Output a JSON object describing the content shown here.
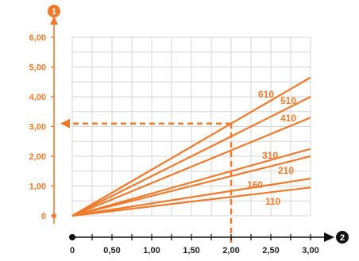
{
  "chart_data": {
    "type": "line",
    "title": "",
    "xlabel": "",
    "ylabel": "",
    "y_axis_marker": "1",
    "x_axis_marker": "2",
    "x_ticks": [
      "0",
      "0,50",
      "1,00",
      "1,50",
      "2,00",
      "2,50",
      "3,00"
    ],
    "y_ticks": [
      "0",
      "1,00",
      "2,00",
      "3,00",
      "4,00",
      "5,00",
      "6,00"
    ],
    "xlim": [
      0,
      3.0
    ],
    "ylim": [
      0,
      6.0
    ],
    "grid": true,
    "series": [
      {
        "name": "610",
        "x": [
          0,
          3.0
        ],
        "y": [
          0,
          4.65
        ]
      },
      {
        "name": "510",
        "x": [
          0,
          3.0
        ],
        "y": [
          0,
          4.0
        ]
      },
      {
        "name": "410",
        "x": [
          0,
          3.0
        ],
        "y": [
          0,
          3.3
        ]
      },
      {
        "name": "310",
        "x": [
          0,
          3.0
        ],
        "y": [
          0,
          2.25
        ]
      },
      {
        "name": "210",
        "x": [
          0,
          3.0
        ],
        "y": [
          0,
          2.0
        ]
      },
      {
        "name": "160",
        "x": [
          0,
          3.0
        ],
        "y": [
          0,
          1.25
        ]
      },
      {
        "name": "110",
        "x": [
          0,
          3.0
        ],
        "y": [
          0,
          0.95
        ]
      }
    ],
    "annotation": {
      "x": 2.0,
      "y": 3.1,
      "style": "dashed"
    },
    "colors": {
      "accent": "#f07a2a",
      "axis_x": "#111111",
      "grid": "#d6d6d6"
    }
  }
}
